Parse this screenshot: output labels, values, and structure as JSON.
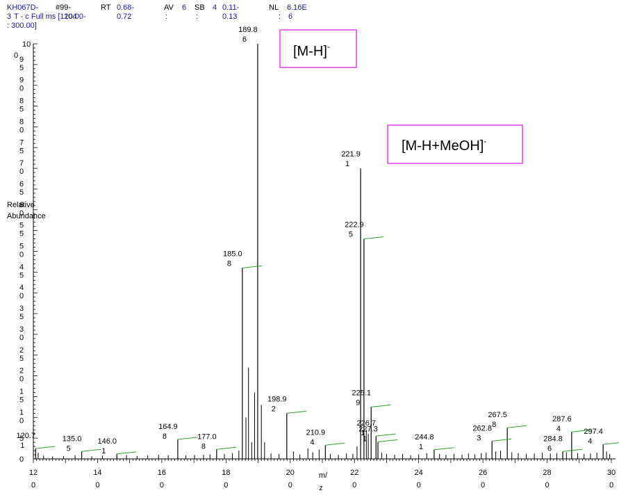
{
  "header": {
    "file": "KH067D-",
    "file_cont": "3",
    "scan_key": "#99-",
    "scan_val": "104",
    "rt_key": "RT",
    "rt_val1": "0.68-",
    "rt_val2": "0.72",
    "av_key": "AV",
    "av_val": "6",
    "sb_key": "SB",
    "sb_val": "4",
    "sb_range1": "0.11-",
    "sb_range2": "0.13",
    "nl_key": "NL",
    "nl_val": "6.16E",
    "nl_val2": "6",
    "filter": "T - c Full ms [120.00-",
    "filter_end": ": 300.00]",
    "colon1": ":",
    "colon2": ":",
    "colon3": ":"
  },
  "chart_data": {
    "type": "bar",
    "title": "",
    "xlabel": "m/z",
    "ylabel": "Relative Abundance",
    "xlim": [
      120,
      300
    ],
    "ylim": [
      0,
      100
    ],
    "x_ticks": [
      120,
      140,
      160,
      180,
      200,
      220,
      240,
      260,
      280,
      300
    ],
    "y_ticks": [
      0,
      5,
      10,
      15,
      20,
      25,
      30,
      35,
      40,
      45,
      50,
      55,
      60,
      65,
      70,
      75,
      80,
      85,
      90,
      95,
      100
    ],
    "peaks": [
      {
        "mz": 120.71,
        "intensity": 2.5,
        "label": "120.7\n1"
      },
      {
        "mz": 135.05,
        "intensity": 1.8,
        "label": "135.0\n5"
      },
      {
        "mz": 146.01,
        "intensity": 1.2,
        "label": "146.0\n1"
      },
      {
        "mz": 164.98,
        "intensity": 4.7,
        "label": "164.9\n8"
      },
      {
        "mz": 177.08,
        "intensity": 2.3,
        "label": "177.0\n8"
      },
      {
        "mz": 185.08,
        "intensity": 46.0,
        "label": "185.0\n8"
      },
      {
        "mz": 189.86,
        "intensity": 100.0,
        "label": "189.8\n6"
      },
      {
        "mz": 198.92,
        "intensity": 11.0,
        "label": "198.9\n2"
      },
      {
        "mz": 210.94,
        "intensity": 3.3,
        "label": "210.9\n4"
      },
      {
        "mz": 221.91,
        "intensity": 70.0,
        "label": "221.9\n1"
      },
      {
        "mz": 222.95,
        "intensity": 53.0,
        "label": "222.9\n5"
      },
      {
        "mz": 225.19,
        "intensity": 12.5,
        "label": "225.1\n9"
      },
      {
        "mz": 226.71,
        "intensity": 5.5,
        "label": "226.7\n1"
      },
      {
        "mz": 227.31,
        "intensity": 4.1,
        "label": "227.3\n1"
      },
      {
        "mz": 244.81,
        "intensity": 2.2,
        "label": "244.8\n1"
      },
      {
        "mz": 262.83,
        "intensity": 4.3,
        "label": "262.8\n3"
      },
      {
        "mz": 267.58,
        "intensity": 7.5,
        "label": "267.5\n8"
      },
      {
        "mz": 284.86,
        "intensity": 1.8,
        "label": "284.8\n6"
      },
      {
        "mz": 287.64,
        "intensity": 6.5,
        "label": "287.6\n4"
      },
      {
        "mz": 297.44,
        "intensity": 3.5,
        "label": "297.4\n4"
      }
    ],
    "minor_peaks": [
      {
        "mz": 121.5,
        "intensity": 1.5
      },
      {
        "mz": 123.2,
        "intensity": 0.8
      },
      {
        "mz": 126.0,
        "intensity": 0.6
      },
      {
        "mz": 129.4,
        "intensity": 0.7
      },
      {
        "mz": 133.0,
        "intensity": 0.9
      },
      {
        "mz": 138.2,
        "intensity": 0.6
      },
      {
        "mz": 141.5,
        "intensity": 0.8
      },
      {
        "mz": 149.0,
        "intensity": 0.9
      },
      {
        "mz": 152.3,
        "intensity": 0.7
      },
      {
        "mz": 155.6,
        "intensity": 0.8
      },
      {
        "mz": 159.0,
        "intensity": 1.0
      },
      {
        "mz": 162.0,
        "intensity": 0.9
      },
      {
        "mz": 167.5,
        "intensity": 0.8
      },
      {
        "mz": 170.2,
        "intensity": 0.9
      },
      {
        "mz": 173.0,
        "intensity": 1.0
      },
      {
        "mz": 175.0,
        "intensity": 1.1
      },
      {
        "mz": 179.5,
        "intensity": 1.2
      },
      {
        "mz": 182.0,
        "intensity": 1.4
      },
      {
        "mz": 184.0,
        "intensity": 2.0
      },
      {
        "mz": 186.2,
        "intensity": 10.0
      },
      {
        "mz": 187.0,
        "intensity": 22.0
      },
      {
        "mz": 188.0,
        "intensity": 4.0
      },
      {
        "mz": 188.9,
        "intensity": 16.0
      },
      {
        "mz": 191.0,
        "intensity": 13.0
      },
      {
        "mz": 192.0,
        "intensity": 4.0
      },
      {
        "mz": 194.0,
        "intensity": 1.3
      },
      {
        "mz": 196.5,
        "intensity": 1.2
      },
      {
        "mz": 201.0,
        "intensity": 1.8
      },
      {
        "mz": 203.0,
        "intensity": 1.1
      },
      {
        "mz": 205.5,
        "intensity": 2.5
      },
      {
        "mz": 207.0,
        "intensity": 1.6
      },
      {
        "mz": 209.0,
        "intensity": 2.2
      },
      {
        "mz": 212.5,
        "intensity": 1.2
      },
      {
        "mz": 215.0,
        "intensity": 1.0
      },
      {
        "mz": 217.5,
        "intensity": 1.3
      },
      {
        "mz": 219.5,
        "intensity": 1.2
      },
      {
        "mz": 220.8,
        "intensity": 3.0
      },
      {
        "mz": 223.7,
        "intensity": 7.0
      },
      {
        "mz": 224.3,
        "intensity": 6.0
      },
      {
        "mz": 228.5,
        "intensity": 1.5
      },
      {
        "mz": 230.0,
        "intensity": 1.2
      },
      {
        "mz": 232.5,
        "intensity": 1.0
      },
      {
        "mz": 235.0,
        "intensity": 1.2
      },
      {
        "mz": 237.5,
        "intensity": 0.9
      },
      {
        "mz": 240.0,
        "intensity": 1.1
      },
      {
        "mz": 242.5,
        "intensity": 1.4
      },
      {
        "mz": 246.5,
        "intensity": 1.2
      },
      {
        "mz": 248.5,
        "intensity": 1.0
      },
      {
        "mz": 251.0,
        "intensity": 1.2
      },
      {
        "mz": 253.5,
        "intensity": 1.0
      },
      {
        "mz": 255.5,
        "intensity": 1.3
      },
      {
        "mz": 257.5,
        "intensity": 1.1
      },
      {
        "mz": 259.5,
        "intensity": 1.4
      },
      {
        "mz": 261.0,
        "intensity": 1.5
      },
      {
        "mz": 264.0,
        "intensity": 1.8
      },
      {
        "mz": 265.5,
        "intensity": 2.0
      },
      {
        "mz": 269.0,
        "intensity": 1.6
      },
      {
        "mz": 271.0,
        "intensity": 1.4
      },
      {
        "mz": 273.5,
        "intensity": 1.2
      },
      {
        "mz": 276.0,
        "intensity": 1.3
      },
      {
        "mz": 278.5,
        "intensity": 1.5
      },
      {
        "mz": 281.0,
        "intensity": 1.3
      },
      {
        "mz": 283.0,
        "intensity": 1.4
      },
      {
        "mz": 286.0,
        "intensity": 1.6
      },
      {
        "mz": 289.5,
        "intensity": 1.4
      },
      {
        "mz": 291.5,
        "intensity": 1.2
      },
      {
        "mz": 293.5,
        "intensity": 1.3
      },
      {
        "mz": 295.5,
        "intensity": 1.5
      },
      {
        "mz": 298.5,
        "intensity": 1.8
      },
      {
        "mz": 299.5,
        "intensity": 1.2
      }
    ],
    "annotations": [
      {
        "text": "[M-H]",
        "sup": "-",
        "mz": 189.86
      },
      {
        "text": "[M-H+MeOH]",
        "sup": "-",
        "mz": 221.91
      }
    ],
    "colors": {
      "axis": "#000000",
      "peak": "#000000",
      "label_leader": "#2e9e2e",
      "annotation_border": "#e040e0",
      "header_text": "#1a1a8c"
    }
  }
}
